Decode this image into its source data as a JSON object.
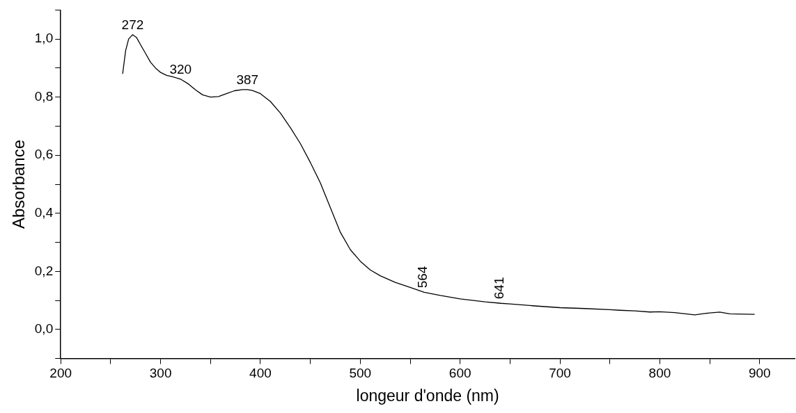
{
  "chart_data": {
    "type": "line",
    "xlabel": "longeur d'onde (nm)",
    "ylabel": "Absorbance",
    "x": [
      262,
      265,
      268,
      272,
      276,
      280,
      285,
      290,
      295,
      300,
      306,
      312,
      320,
      328,
      335,
      342,
      350,
      358,
      366,
      374,
      382,
      387,
      392,
      400,
      410,
      420,
      430,
      440,
      450,
      460,
      470,
      480,
      490,
      500,
      510,
      520,
      535,
      550,
      564,
      580,
      600,
      625,
      641,
      650,
      675,
      700,
      725,
      750,
      760,
      775,
      790,
      800,
      815,
      835,
      845,
      860,
      870,
      895
    ],
    "series": [
      {
        "color": "#000000",
        "values": [
          0.88,
          0.96,
          1.0,
          1.015,
          1.005,
          0.98,
          0.95,
          0.92,
          0.9,
          0.885,
          0.875,
          0.87,
          0.862,
          0.845,
          0.825,
          0.808,
          0.8,
          0.802,
          0.812,
          0.822,
          0.826,
          0.826,
          0.823,
          0.812,
          0.785,
          0.745,
          0.695,
          0.64,
          0.575,
          0.505,
          0.42,
          0.335,
          0.275,
          0.235,
          0.205,
          0.185,
          0.162,
          0.145,
          0.128,
          0.117,
          0.105,
          0.095,
          0.09,
          0.088,
          0.081,
          0.075,
          0.072,
          0.068,
          0.066,
          0.064,
          0.06,
          0.061,
          0.058,
          0.05,
          0.055,
          0.06,
          0.054,
          0.052
        ]
      }
    ],
    "xlim": [
      200,
      935
    ],
    "ylim": [
      -0.1,
      1.1
    ],
    "xticks": [
      200,
      {
        "value": 250,
        "label": null
      },
      300,
      {
        "value": 350,
        "label": null
      },
      400,
      {
        "value": 450,
        "label": null
      },
      500,
      {
        "value": 550,
        "label": null
      },
      600,
      {
        "value": 650,
        "label": null
      },
      700,
      {
        "value": 750,
        "label": null
      },
      800,
      {
        "value": 850,
        "label": null
      },
      900
    ],
    "yticks": [
      {
        "value": -0.1,
        "label": null
      },
      {
        "value": 0,
        "label": "0,0"
      },
      {
        "value": 0.1,
        "label": null
      },
      {
        "value": 0.2,
        "label": "0,2"
      },
      {
        "value": 0.3,
        "label": null
      },
      {
        "value": 0.4,
        "label": "0,4"
      },
      {
        "value": 0.5,
        "label": null
      },
      {
        "value": 0.6,
        "label": "0,6"
      },
      {
        "value": 0.7,
        "label": null
      },
      {
        "value": 0.8,
        "label": "0,8"
      },
      {
        "value": 0.9,
        "label": null
      },
      {
        "value": 1.0,
        "label": "1,0"
      },
      {
        "value": 1.1,
        "label": null
      }
    ],
    "annotations": [
      {
        "text": "272",
        "x": 272,
        "y": 1.015
      },
      {
        "text": "320",
        "x": 320,
        "y": 0.862
      },
      {
        "text": "387",
        "x": 387,
        "y": 0.826
      },
      {
        "text": "564",
        "x": 564,
        "y": 0.128
      },
      {
        "text": "641",
        "x": 641,
        "y": 0.09
      }
    ],
    "grid": false,
    "legend": false,
    "marker": "none",
    "line_style": "solid"
  }
}
